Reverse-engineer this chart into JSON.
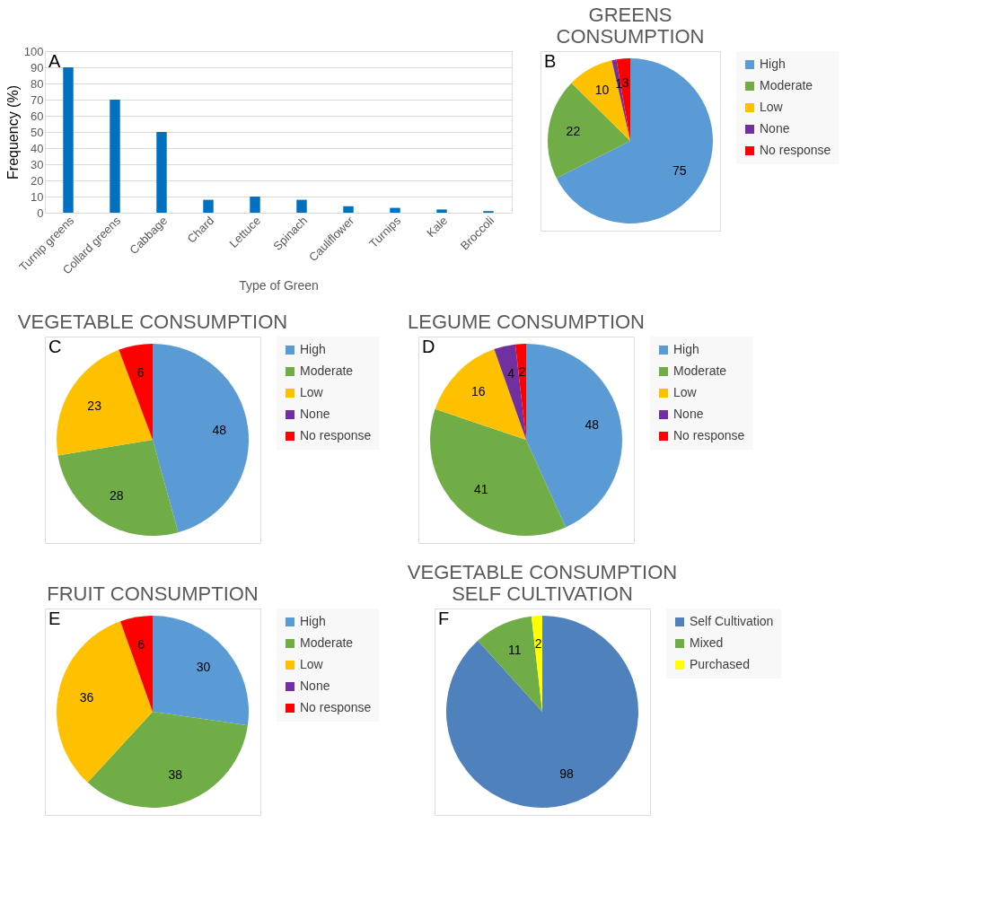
{
  "chart_data": [
    {
      "type": "bar",
      "annotations": [
        "A"
      ],
      "xlabel": "Type of Green",
      "ylabel": "Frequency (%)",
      "categories": [
        "Turnip greens",
        "Collard greens",
        "Cabbage",
        "Chard",
        "Lettuce",
        "Spinach",
        "Cauliflower",
        "Turnips",
        "Kale",
        "Broccoli"
      ],
      "values": [
        90,
        70,
        50,
        8,
        10,
        8,
        4,
        3,
        2,
        1
      ],
      "color": "#0070c0",
      "ylim": [
        0,
        100
      ],
      "yticks": [
        0,
        10,
        20,
        30,
        40,
        50,
        60,
        70,
        80,
        90,
        100
      ],
      "grid": "y"
    },
    {
      "type": "pie",
      "annotations": [
        "B"
      ],
      "title": [
        "GREENS",
        "CONSUMPTION"
      ],
      "categories": [
        "High",
        "Moderate",
        "Low",
        "None",
        "No response"
      ],
      "values": [
        75,
        22,
        10,
        1,
        3
      ],
      "value_labels": [
        "75",
        "22",
        "10",
        "1",
        "3"
      ],
      "colors": [
        "#5b9bd5",
        "#70ad47",
        "#ffc000",
        "#7030a0",
        "#ff0000"
      ],
      "legend": "right"
    },
    {
      "type": "pie",
      "annotations": [
        "C"
      ],
      "title": "VEGETABLE CONSUMPTION",
      "categories": [
        "High",
        "Moderate",
        "Low",
        "None",
        "No response"
      ],
      "values": [
        48,
        28,
        23,
        0,
        6
      ],
      "value_labels": [
        "48",
        "28",
        "23",
        null,
        "6"
      ],
      "colors": [
        "#5b9bd5",
        "#70ad47",
        "#ffc000",
        "#7030a0",
        "#ff0000"
      ],
      "legend": "right"
    },
    {
      "type": "pie",
      "annotations": [
        "D"
      ],
      "title": "LEGUME CONSUMPTION",
      "categories": [
        "High",
        "Moderate",
        "Low",
        "None",
        "No response"
      ],
      "values": [
        48,
        41,
        16,
        4,
        2
      ],
      "value_labels": [
        "48",
        "41",
        "16",
        "4",
        "2"
      ],
      "colors": [
        "#5b9bd5",
        "#70ad47",
        "#ffc000",
        "#7030a0",
        "#ff0000"
      ],
      "legend": "right"
    },
    {
      "type": "pie",
      "annotations": [
        "E"
      ],
      "title": "FRUIT CONSUMPTION",
      "categories": [
        "High",
        "Moderate",
        "Low",
        "None",
        "No response"
      ],
      "values": [
        30,
        38,
        36,
        0,
        6
      ],
      "value_labels": [
        "30",
        "38",
        "36",
        null,
        "6"
      ],
      "colors": [
        "#5b9bd5",
        "#70ad47",
        "#ffc000",
        "#7030a0",
        "#ff0000"
      ],
      "legend": "right"
    },
    {
      "type": "pie",
      "annotations": [
        "F"
      ],
      "title": [
        "VEGETABLE CONSUMPTION",
        "SELF CULTIVATION"
      ],
      "categories": [
        "Self Cultivation",
        "Mixed",
        "Purchased"
      ],
      "values": [
        98,
        11,
        2
      ],
      "value_labels": [
        "98",
        "11",
        "2"
      ],
      "colors": [
        "#4f81bd",
        "#70ad47",
        "#ffff00"
      ],
      "legend": "right"
    }
  ]
}
